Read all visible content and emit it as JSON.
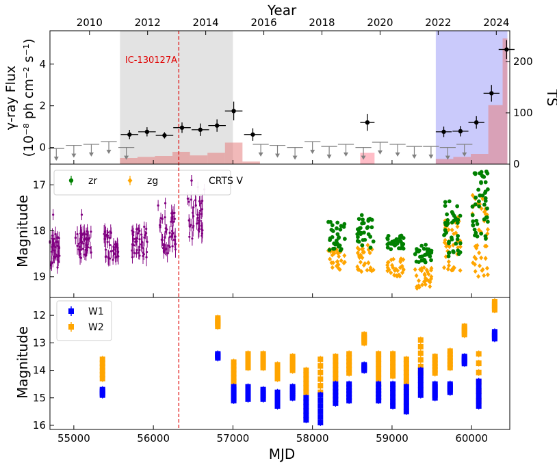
{
  "chart_data": [
    {
      "type": "scatter",
      "panel": "gamma-ray flux and TS",
      "top_axis_label": "Year",
      "top_ticks": [
        "2010",
        "2012",
        "2014",
        "2016",
        "2018",
        "2020",
        "2022",
        "2024"
      ],
      "ylabel_line1": "γ-ray Flux",
      "ylabel_line2": "(10⁻⁸ ph cm⁻² s⁻¹)",
      "ylim": [
        -0.8,
        5.6
      ],
      "yticks": [
        "0",
        "2",
        "4"
      ],
      "right_label": "TS",
      "right_ylim": [
        0,
        260
      ],
      "right_ticks": [
        "0",
        "100",
        "200"
      ],
      "annotation": "IC-130127A",
      "event_mjd": 56320,
      "shaded_regions": [
        {
          "x0": 55580,
          "x1": 57000,
          "color": "#b8b8b8"
        },
        {
          "x0": 59550,
          "x1": 60450,
          "color": "#7a7af5"
        }
      ],
      "colors": {
        "flux": "#000000",
        "upper_limit": "#808080",
        "ts_bar": "#e68080",
        "ts_highlight": "#ffb6c1",
        "event_line": "#e00000"
      },
      "flux_points": [
        {
          "x": 55700,
          "xerr": 110,
          "y": 0.62,
          "yerr": 0.22
        },
        {
          "x": 55920,
          "xerr": 110,
          "y": 0.75,
          "yerr": 0.22
        },
        {
          "x": 56140,
          "xerr": 110,
          "y": 0.58,
          "yerr": 0.15
        },
        {
          "x": 56360,
          "xerr": 110,
          "y": 0.95,
          "yerr": 0.25
        },
        {
          "x": 56590,
          "xerr": 110,
          "y": 0.85,
          "yerr": 0.3
        },
        {
          "x": 56800,
          "xerr": 110,
          "y": 1.05,
          "yerr": 0.3
        },
        {
          "x": 57010,
          "xerr": 110,
          "y": 1.75,
          "yerr": 0.45
        },
        {
          "x": 57250,
          "xerr": 110,
          "y": 0.62,
          "yerr": 0.3
        },
        {
          "x": 58690,
          "xerr": 90,
          "y": 1.2,
          "yerr": 0.4
        },
        {
          "x": 59650,
          "xerr": 100,
          "y": 0.75,
          "yerr": 0.25
        },
        {
          "x": 59860,
          "xerr": 100,
          "y": 0.78,
          "yerr": 0.25
        },
        {
          "x": 60060,
          "xerr": 100,
          "y": 1.2,
          "yerr": 0.3
        },
        {
          "x": 60250,
          "xerr": 100,
          "y": 2.6,
          "yerr": 0.4
        },
        {
          "x": 60440,
          "xerr": 100,
          "y": 4.7,
          "yerr": 0.45
        }
      ],
      "upper_limits": [
        {
          "x": 54780,
          "xerr": 100,
          "y": -0.05
        },
        {
          "x": 55000,
          "xerr": 100,
          "y": 0.1
        },
        {
          "x": 55220,
          "xerr": 100,
          "y": 0.15
        },
        {
          "x": 55440,
          "xerr": 100,
          "y": 0.28
        },
        {
          "x": 55660,
          "xerr": 100,
          "y": 0.0
        },
        {
          "x": 57350,
          "xerr": 100,
          "y": 0.15
        },
        {
          "x": 57560,
          "xerr": 100,
          "y": 0.1
        },
        {
          "x": 57780,
          "xerr": 100,
          "y": 0.0
        },
        {
          "x": 58000,
          "xerr": 100,
          "y": 0.28
        },
        {
          "x": 58210,
          "xerr": 100,
          "y": 0.05
        },
        {
          "x": 58420,
          "xerr": 100,
          "y": 0.15
        },
        {
          "x": 58640,
          "xerr": 100,
          "y": 0.0
        },
        {
          "x": 58850,
          "xerr": 100,
          "y": 0.25
        },
        {
          "x": 59070,
          "xerr": 100,
          "y": 0.15
        },
        {
          "x": 59280,
          "xerr": 100,
          "y": 0.05
        },
        {
          "x": 59490,
          "xerr": 100,
          "y": 0.05
        },
        {
          "x": 59700,
          "xerr": 100,
          "y": 0.0
        },
        {
          "x": 59910,
          "xerr": 100,
          "y": 0.15
        }
      ],
      "ts_bins": [
        {
          "x0": 55580,
          "x1": 55800,
          "ts": 12
        },
        {
          "x0": 55800,
          "x1": 56020,
          "ts": 14
        },
        {
          "x0": 56020,
          "x1": 56240,
          "ts": 16
        },
        {
          "x0": 56240,
          "x1": 56460,
          "ts": 24
        },
        {
          "x0": 56460,
          "x1": 56680,
          "ts": 17
        },
        {
          "x0": 56680,
          "x1": 56900,
          "ts": 22
        },
        {
          "x0": 56900,
          "x1": 57120,
          "ts": 42
        },
        {
          "x0": 57120,
          "x1": 57340,
          "ts": 5
        },
        {
          "x0": 58600,
          "x1": 58780,
          "ts": 22,
          "highlight": true
        },
        {
          "x0": 59550,
          "x1": 59770,
          "ts": 10
        },
        {
          "x0": 59770,
          "x1": 59990,
          "ts": 14
        },
        {
          "x0": 59990,
          "x1": 60210,
          "ts": 20
        },
        {
          "x0": 60210,
          "x1": 60390,
          "ts": 115
        },
        {
          "x0": 60390,
          "x1": 60450,
          "ts": 245
        }
      ]
    },
    {
      "type": "scatter",
      "panel": "optical light curve",
      "ylabel": "Magnitude",
      "ylim": [
        19.45,
        16.55
      ],
      "yticks": [
        "17",
        "18",
        "19"
      ],
      "legend": [
        "zr",
        "zg",
        "CRTS V"
      ],
      "colors": {
        "zr": "#008000",
        "zg": "#ffa500",
        "crts": "#800080"
      },
      "crts_clusters": [
        {
          "x0": 54700,
          "x1": 54820,
          "lo": 18.0,
          "hi": 18.8,
          "n": 40
        },
        {
          "x0": 55020,
          "x1": 55220,
          "lo": 18.0,
          "hi": 18.6,
          "n": 40
        },
        {
          "x0": 55380,
          "x1": 55560,
          "lo": 18.0,
          "hi": 18.7,
          "n": 40
        },
        {
          "x0": 55730,
          "x1": 55930,
          "lo": 17.9,
          "hi": 18.6,
          "n": 40
        },
        {
          "x0": 56080,
          "x1": 56280,
          "lo": 17.6,
          "hi": 18.5,
          "n": 40
        },
        {
          "x0": 56430,
          "x1": 56630,
          "lo": 17.3,
          "hi": 18.2,
          "n": 35
        }
      ],
      "ztf_clusters": [
        {
          "x0": 58200,
          "x1": 58420,
          "zr_lo": 17.8,
          "zr_hi": 18.5,
          "zg_lo": 18.4,
          "zg_hi": 18.9,
          "n": 30
        },
        {
          "x0": 58560,
          "x1": 58780,
          "zr_lo": 17.6,
          "zr_hi": 18.4,
          "zg_lo": 18.3,
          "zg_hi": 18.9,
          "n": 30
        },
        {
          "x0": 58930,
          "x1": 59150,
          "zr_lo": 18.1,
          "zr_hi": 18.4,
          "zg_lo": 18.6,
          "zg_hi": 19.0,
          "n": 30
        },
        {
          "x0": 59290,
          "x1": 59510,
          "zr_lo": 18.3,
          "zr_hi": 18.7,
          "zg_lo": 18.8,
          "zg_hi": 19.3,
          "n": 30
        },
        {
          "x0": 59650,
          "x1": 59870,
          "zr_lo": 17.3,
          "zr_hi": 18.6,
          "zg_lo": 17.7,
          "zg_hi": 18.9,
          "n": 40
        },
        {
          "x0": 60010,
          "x1": 60210,
          "zr_lo": 16.7,
          "zr_hi": 18.2,
          "zg_lo": 17.2,
          "zg_hi": 19.0,
          "n": 45
        }
      ]
    },
    {
      "type": "scatter",
      "panel": "infrared light curve",
      "ylabel": "Magnitude",
      "xlabel": "MJD",
      "xlim": [
        54700,
        60480
      ],
      "xticks": [
        "55000",
        "56000",
        "57000",
        "58000",
        "59000",
        "60000"
      ],
      "ylim": [
        16.15,
        11.35
      ],
      "yticks": [
        "12",
        "13",
        "14",
        "15",
        "16"
      ],
      "legend": [
        "W1",
        "W2"
      ],
      "colors": {
        "W1": "#0000ff",
        "W2": "#ffa500"
      },
      "epochs": [
        {
          "x": 55360,
          "w1": [
            14.7,
            14.9
          ],
          "w2": [
            13.6,
            14.3
          ]
        },
        {
          "x": 56810,
          "w1": [
            13.4,
            13.55
          ],
          "w2": [
            12.1,
            12.4
          ]
        },
        {
          "x": 57010,
          "w1": [
            14.6,
            15.1
          ],
          "w2": [
            13.7,
            14.4
          ]
        },
        {
          "x": 57190,
          "w1": [
            14.6,
            15.05
          ],
          "w2": [
            13.4,
            13.9
          ]
        },
        {
          "x": 57380,
          "w1": [
            14.7,
            15.05
          ],
          "w2": [
            13.4,
            13.9
          ]
        },
        {
          "x": 57560,
          "w1": [
            14.8,
            15.3
          ],
          "w2": [
            13.8,
            14.3
          ]
        },
        {
          "x": 57750,
          "w1": [
            14.6,
            15.0
          ],
          "w2": [
            13.5,
            14.0
          ]
        },
        {
          "x": 57920,
          "w1": [
            15.0,
            15.8
          ],
          "w2": [
            14.0,
            14.8
          ]
        },
        {
          "x": 58100,
          "w1": [
            14.9,
            15.9
          ],
          "w2": [
            13.6,
            14.8
          ]
        },
        {
          "x": 58290,
          "w1": [
            14.5,
            15.2
          ],
          "w2": [
            13.5,
            14.3
          ]
        },
        {
          "x": 58460,
          "w1": [
            14.5,
            15.1
          ],
          "w2": [
            13.4,
            14.1
          ]
        },
        {
          "x": 58650,
          "w1": [
            13.8,
            14.0
          ],
          "w2": [
            12.7,
            13.0
          ]
        },
        {
          "x": 58830,
          "w1": [
            14.5,
            15.1
          ],
          "w2": [
            13.4,
            14.3
          ]
        },
        {
          "x": 59010,
          "w1": [
            14.5,
            15.3
          ],
          "w2": [
            13.4,
            14.2
          ]
        },
        {
          "x": 59180,
          "w1": [
            14.6,
            15.5
          ],
          "w2": [
            13.6,
            14.4
          ]
        },
        {
          "x": 59360,
          "w1": [
            14.0,
            14.9
          ],
          "w2": [
            12.9,
            14.1
          ]
        },
        {
          "x": 59540,
          "w1": [
            14.5,
            15.0
          ],
          "w2": [
            13.5,
            14.1
          ]
        },
        {
          "x": 59730,
          "w1": [
            14.5,
            14.8
          ],
          "w2": [
            13.3,
            13.9
          ]
        },
        {
          "x": 59910,
          "w1": [
            13.5,
            13.75
          ],
          "w2": [
            12.4,
            12.7
          ]
        },
        {
          "x": 60090,
          "w1": [
            14.4,
            15.3
          ],
          "w2": [
            13.4,
            15.1
          ]
        },
        {
          "x": 60290,
          "w1": [
            12.6,
            12.85
          ],
          "w2": [
            11.5,
            11.8
          ]
        }
      ]
    }
  ]
}
